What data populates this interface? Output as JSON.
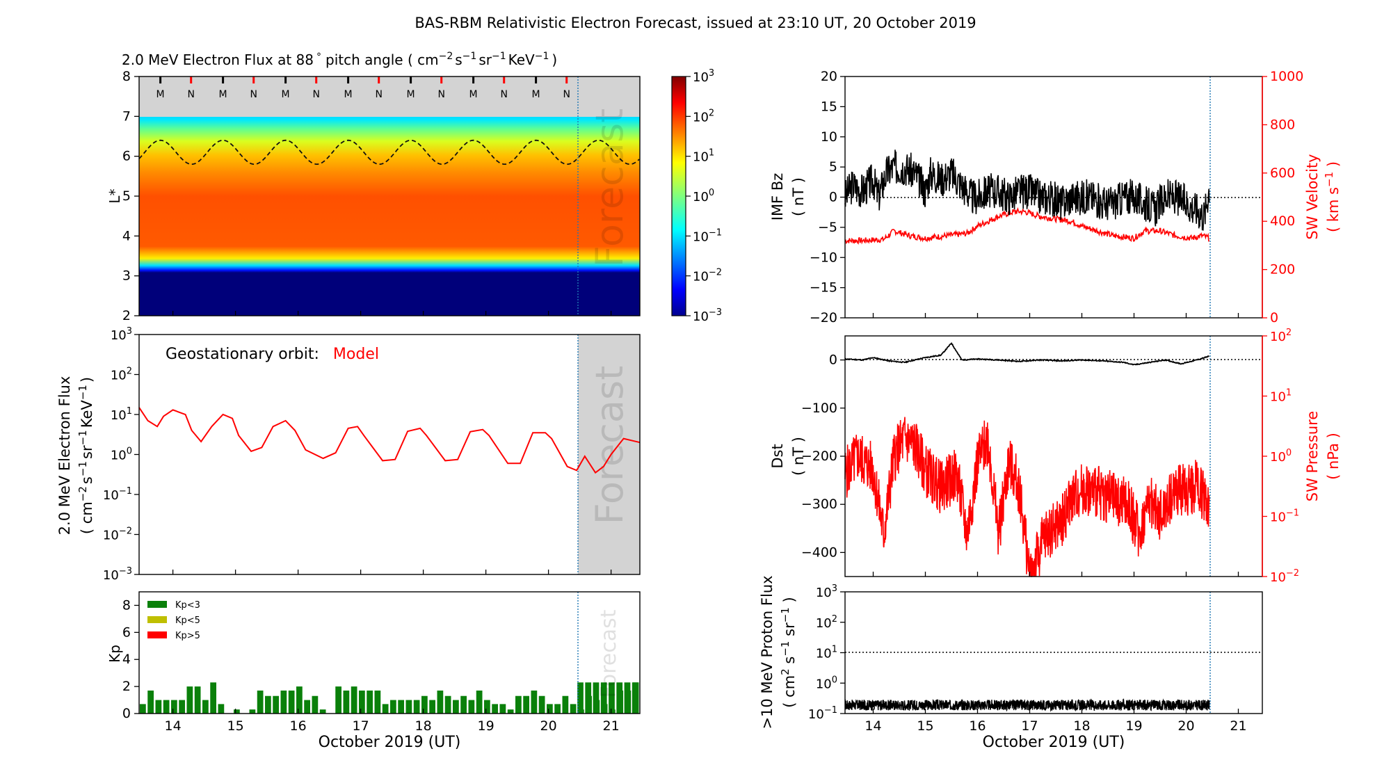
{
  "title": "BAS-RBM Relativistic Electron Forecast, issued at 23:10 UT, 20 October 2019",
  "colors": {
    "black": "#000000",
    "red": "#ff0000",
    "green": "#0a800a",
    "olive": "#bfbf00",
    "forecast_shade": "#d3d3d3",
    "forecast_line": "#1f77b4"
  },
  "chart_data": [
    {
      "id": "flux_map",
      "type": "heatmap",
      "title_prefix": "2.0 MeV Electron Flux at 88",
      "title_degree": "°",
      "title_units_open": "pitch angle ( cm",
      "title_units": [
        "cm",
        "-2",
        "s",
        "-1",
        "sr",
        "-1",
        "KeV",
        "-1"
      ],
      "ylabel": "L*",
      "ylim": [
        2,
        8
      ],
      "yticks": [
        "2",
        "3",
        "4",
        "5",
        "6",
        "7",
        "8"
      ],
      "xlim": [
        13.46,
        21.46
      ],
      "colorbar": {
        "scale": "log",
        "range": [
          -3,
          3
        ],
        "tick_base": "10",
        "tick_exponents": [
          "3",
          "2",
          "1",
          "0",
          "−1",
          "−2",
          "−3"
        ]
      },
      "grey_band": [
        7,
        8
      ],
      "forecast_label": "Forecast",
      "mn_markers": [
        {
          "t": 13.8,
          "label": "M"
        },
        {
          "t": 14.29,
          "label": "N"
        },
        {
          "t": 14.8,
          "label": "M"
        },
        {
          "t": 15.29,
          "label": "N"
        },
        {
          "t": 15.8,
          "label": "M"
        },
        {
          "t": 16.29,
          "label": "N"
        },
        {
          "t": 16.8,
          "label": "M"
        },
        {
          "t": 17.29,
          "label": "N"
        },
        {
          "t": 17.8,
          "label": "M"
        },
        {
          "t": 18.29,
          "label": "N"
        },
        {
          "t": 18.8,
          "label": "M"
        },
        {
          "t": 19.29,
          "label": "N"
        },
        {
          "t": 19.8,
          "label": "M"
        },
        {
          "t": 20.29,
          "label": "N"
        }
      ],
      "geo_orbit_lstar": {
        "mean": 6.1,
        "amplitude": 0.3,
        "period_days": 1,
        "peak_t": 13.8
      }
    },
    {
      "id": "geo_flux",
      "type": "line",
      "label": "Geostationary orbit:",
      "label_model": "Model",
      "ylabel_line1": "2.0 MeV Electron Flux",
      "ylabel_line2_parts": [
        "( cm",
        "−2",
        "s",
        "−1",
        "sr",
        "−1",
        "KeV",
        "−1",
        ")"
      ],
      "ylim_log": [
        -3,
        3
      ],
      "ytick_base": "10",
      "ytick_exponents": [
        "3",
        "2",
        "1",
        "0",
        "−1",
        "−2",
        "−3"
      ],
      "forecast_label": "Forecast",
      "series": [
        {
          "name": "Model",
          "x": [
            13.46,
            13.6,
            13.75,
            13.85,
            14.0,
            14.2,
            14.3,
            14.45,
            14.62,
            14.8,
            14.95,
            15.05,
            15.25,
            15.42,
            15.6,
            15.8,
            15.95,
            16.12,
            16.4,
            16.6,
            16.8,
            16.95,
            17.05,
            17.35,
            17.55,
            17.75,
            17.95,
            18.05,
            18.35,
            18.55,
            18.75,
            18.95,
            19.05,
            19.35,
            19.55,
            19.75,
            19.95,
            20.05,
            20.3,
            20.45,
            20.58,
            20.75,
            20.88,
            21.0,
            21.2,
            21.46
          ],
          "y": [
            15,
            7,
            5,
            9,
            13,
            10,
            4,
            2.1,
            5,
            10,
            8,
            3,
            1.2,
            1.5,
            5,
            7,
            4,
            1.3,
            0.8,
            1.1,
            4.5,
            5,
            3,
            0.7,
            0.75,
            3.8,
            4.5,
            3,
            0.7,
            0.75,
            3.7,
            4.2,
            3,
            0.6,
            0.6,
            3.5,
            3.5,
            2.5,
            0.5,
            0.4,
            0.9,
            0.35,
            0.5,
            1.0,
            2.5,
            2.0
          ]
        }
      ]
    },
    {
      "id": "kp",
      "type": "bar",
      "ylabel": "Kp",
      "ylim": [
        0,
        9
      ],
      "yticks": [
        "0",
        "2",
        "4",
        "6",
        "8"
      ],
      "legend": [
        "Kp<3",
        "Kp<5",
        "Kp>5"
      ],
      "forecast_label": "Forecast",
      "x_start": 13.46,
      "bin_days": 0.125,
      "values": [
        0.7,
        1.7,
        1.0,
        1.0,
        1.0,
        1.0,
        2.0,
        2.0,
        1.0,
        2.3,
        0.7,
        0.0,
        0.3,
        0.0,
        0.3,
        1.7,
        1.3,
        1.3,
        1.7,
        1.7,
        2.0,
        1.0,
        1.3,
        0.3,
        0.0,
        2.0,
        1.7,
        2.0,
        1.7,
        1.7,
        1.7,
        0.7,
        1.0,
        1.0,
        1.0,
        1.0,
        1.3,
        1.0,
        1.7,
        1.3,
        1.0,
        1.3,
        1.0,
        1.7,
        1.0,
        0.7,
        0.7,
        0.3,
        1.3,
        1.3,
        1.7,
        1.3,
        0.7,
        0.7,
        1.3,
        0.7,
        0.3,
        1.3,
        1.0,
        0.7,
        0.3,
        1.7,
        1.7,
        2.3
      ],
      "forecast_value": 2.3,
      "forecast_bars": 8
    },
    {
      "id": "imf",
      "type": "line",
      "ylabel_left": [
        "IMF Bz",
        "( nT )"
      ],
      "ylabel_right": [
        "SW Velocity",
        "( km s",
        "−1",
        " )"
      ],
      "ylim_left": [
        -20,
        20
      ],
      "yticks_left": [
        "20",
        "15",
        "10",
        "5",
        "0",
        "−5",
        "−10",
        "−15",
        "−20"
      ],
      "ylim_right": [
        0,
        1000
      ],
      "yticks_right": [
        "1000",
        "800",
        "600",
        "400",
        "200",
        "0"
      ],
      "series": [
        {
          "name": "IMF Bz",
          "x": [
            13.46,
            13.6,
            13.8,
            14.0,
            14.1,
            14.25,
            14.4,
            14.6,
            14.8,
            15.0,
            15.1,
            15.3,
            15.5,
            15.7,
            15.9,
            16.0,
            16.2,
            16.4,
            16.6,
            16.8,
            17.0,
            17.2,
            17.4,
            17.6,
            17.8,
            18.0,
            18.2,
            18.4,
            18.6,
            18.8,
            19.0,
            19.2,
            19.4,
            19.6,
            19.8,
            20.0,
            20.2,
            20.35,
            20.45
          ],
          "y": [
            0,
            2,
            1,
            3,
            0,
            4,
            5,
            5,
            4,
            1,
            4,
            3,
            4,
            2,
            0,
            0,
            1,
            1,
            0,
            1,
            1,
            0,
            0,
            -1,
            0,
            0,
            0,
            -1,
            -1,
            0,
            0,
            -1,
            -2,
            0,
            0,
            -1,
            -2,
            -3,
            2
          ]
        },
        {
          "name": "SW Velocity",
          "x": [
            13.46,
            13.8,
            14.2,
            14.4,
            14.7,
            15.0,
            15.4,
            15.8,
            16.0,
            16.4,
            16.7,
            16.9,
            17.2,
            17.5,
            17.8,
            18.0,
            18.3,
            18.6,
            18.8,
            19.0,
            19.2,
            19.5,
            19.8,
            20.1,
            20.3,
            20.45
          ],
          "y": [
            320,
            320,
            325,
            360,
            340,
            330,
            340,
            350,
            380,
            420,
            440,
            440,
            420,
            410,
            400,
            380,
            360,
            340,
            335,
            330,
            360,
            360,
            340,
            330,
            340,
            330
          ]
        }
      ],
      "zero_line": 0
    },
    {
      "id": "dst",
      "type": "line",
      "ylabel_left": [
        "Dst",
        "( nT )"
      ],
      "ylabel_right": [
        "SW Pressure",
        "( nPa )"
      ],
      "ylim_left": [
        -450,
        50
      ],
      "yticks_left": [
        "0",
        "−100",
        "−200",
        "−300",
        "−400"
      ],
      "ylim_right_log": [
        -2,
        2
      ],
      "ytick_base": "10",
      "ytick_exponents_right": [
        "2",
        "1",
        "0",
        "−1",
        "−2"
      ],
      "series": [
        {
          "name": "Dst",
          "x": [
            13.46,
            13.8,
            14.0,
            14.3,
            14.6,
            15.0,
            15.3,
            15.5,
            15.7,
            16.0,
            16.4,
            16.8,
            17.2,
            17.6,
            18.0,
            18.4,
            18.8,
            19.0,
            19.3,
            19.6,
            19.9,
            20.2,
            20.45
          ],
          "y": [
            2,
            0,
            5,
            -2,
            -5,
            5,
            10,
            35,
            0,
            2,
            0,
            -3,
            0,
            -2,
            0,
            -2,
            -5,
            -10,
            -5,
            0,
            -8,
            0,
            8
          ]
        },
        {
          "name": "SW Pressure",
          "x": [
            13.46,
            13.7,
            14.0,
            14.2,
            14.4,
            14.6,
            14.8,
            15.0,
            15.3,
            15.6,
            15.8,
            16.0,
            16.2,
            16.4,
            16.6,
            16.8,
            17.0,
            17.3,
            17.6,
            17.8,
            18.0,
            18.3,
            18.6,
            18.9,
            19.1,
            19.3,
            19.5,
            19.8,
            20.0,
            20.2,
            20.45
          ],
          "y": [
            0.5,
            1.0,
            0.6,
            0.05,
            1.0,
            2.0,
            1.5,
            0.6,
            0.3,
            0.5,
            0.05,
            0.8,
            2.0,
            0.05,
            0.8,
            0.3,
            0.01,
            0.05,
            0.08,
            0.2,
            0.3,
            0.25,
            0.2,
            0.15,
            0.05,
            0.2,
            0.1,
            0.3,
            0.25,
            0.35,
            0.15
          ]
        }
      ],
      "zero_line": 0
    },
    {
      "id": "proton",
      "type": "line",
      "ylabel": [
        ">10 MeV Proton Flux",
        "( cm",
        "2",
        " s",
        "−1",
        " sr",
        "−1",
        " )"
      ],
      "ylim_log": [
        -1,
        3
      ],
      "ytick_base": "10",
      "ytick_exponents": [
        "3",
        "2",
        "1",
        "0",
        "−1"
      ],
      "threshold": 10,
      "series": [
        {
          "name": "Proton flux",
          "x_range": [
            13.46,
            20.45
          ],
          "baseline": 0.19
        }
      ]
    }
  ],
  "x_axis": {
    "forecast_start": 20.45,
    "ticks": [
      "14",
      "15",
      "16",
      "17",
      "18",
      "19",
      "20",
      "21"
    ],
    "left_label": "October 2019 (UT)",
    "right_label": "October 2019 (UT)"
  }
}
